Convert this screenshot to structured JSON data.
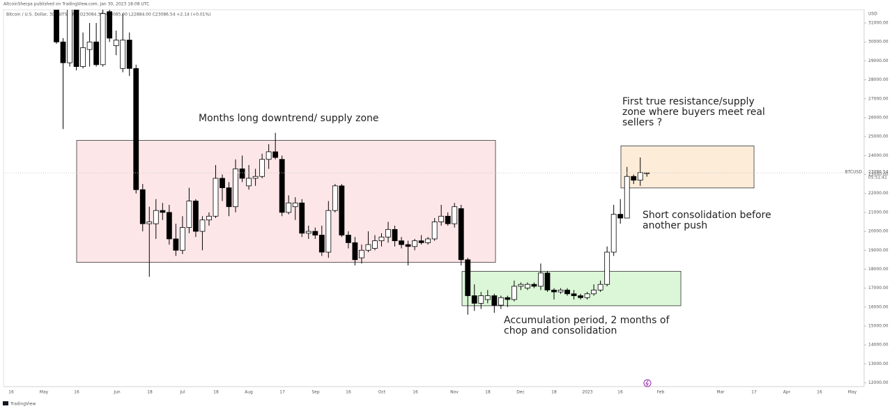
{
  "header": {
    "publisher": "AltcoinSherpa published on TradingView.com, Jan 30, 2023 18:08 UTC",
    "symbol_line": "Bitcoin / U.S. Dollar, 3D, BITSTAMP  O23084.38 H23085.00 L22884.00 C23086.54 +2.14 (+0.01%)"
  },
  "footer": {
    "brand": "TradingView"
  },
  "chart_data": {
    "type": "candlestick",
    "currency": "USD",
    "symbol": "BTCUSD",
    "countdown": "05:51:41",
    "up_color": "#ffffff",
    "down_color": "#000000",
    "ylim": [
      11800,
      31700
    ],
    "yticks": [
      {
        "value": 12000,
        "label": "12000.00"
      },
      {
        "value": 13000,
        "label": "13000.00"
      },
      {
        "value": 14000,
        "label": "14000.00"
      },
      {
        "value": 15000,
        "label": "15000.00"
      },
      {
        "value": 16000,
        "label": "16000.00"
      },
      {
        "value": 17000,
        "label": "17000.00"
      },
      {
        "value": 18000,
        "label": "18000.00"
      },
      {
        "value": 19000,
        "label": "19000.00"
      },
      {
        "value": 20000,
        "label": "20000.00"
      },
      {
        "value": 21000,
        "label": "21000.00"
      },
      {
        "value": 22000,
        "label": "22000.00"
      },
      {
        "value": 23000,
        "label": "23000.00"
      },
      {
        "value": 24000,
        "label": "24000.00"
      },
      {
        "value": 25000,
        "label": "25000.00"
      },
      {
        "value": 26000,
        "label": "26000.00"
      },
      {
        "value": 27000,
        "label": "27000.00"
      },
      {
        "value": 28000,
        "label": "28000.00"
      },
      {
        "value": 29000,
        "label": "29000.00"
      },
      {
        "value": 30000,
        "label": "30000.00"
      },
      {
        "value": 31000,
        "label": "31000.00"
      }
    ],
    "x_axis_labels": [
      "16",
      "May",
      "16",
      "Jun",
      "18",
      "Jul",
      "18",
      "Aug",
      "17",
      "Sep",
      "16",
      "Oct",
      "16",
      "Nov",
      "18",
      "Dec",
      "18",
      "2023",
      "16",
      "Feb",
      "Mar",
      "17",
      "Apr",
      "16",
      "May"
    ],
    "open": [
      31800,
      30000,
      28900,
      31800,
      28700,
      29600,
      30000,
      28800,
      31600,
      29800,
      28600,
      30100,
      28600,
      22200,
      20400,
      20400,
      21100,
      21000,
      19600,
      19000,
      20200,
      21600,
      20000,
      20600,
      20800,
      22800,
      22300,
      21300,
      23300,
      22400,
      22800,
      22900,
      23800,
      24200,
      23800,
      21000,
      21300,
      21500,
      19900,
      20000,
      19800,
      18900,
      21100,
      22400,
      19800,
      19400,
      18600,
      19000,
      19100,
      19500,
      19700,
      20100,
      19500,
      19300,
      19200,
      19500,
      19400,
      19600,
      20500,
      20800,
      20400,
      21200,
      18500,
      16600,
      16200,
      16400,
      16600,
      16100,
      16500,
      16400,
      17100,
      17000,
      17200,
      17100,
      17800,
      16900,
      16800,
      16900,
      16700,
      16600,
      16500,
      16700,
      16900,
      17200,
      18900,
      20900,
      20700,
      22900,
      22700,
      23084.38
    ],
    "high": [
      32200,
      30200,
      32500,
      32200,
      30500,
      31000,
      31000,
      31800,
      32000,
      30600,
      31500,
      30500,
      28800,
      22500,
      21300,
      21700,
      21500,
      21400,
      20400,
      20800,
      22300,
      21700,
      20800,
      21000,
      23500,
      23000,
      22600,
      23800,
      24000,
      23500,
      23300,
      24100,
      24600,
      25200,
      24000,
      21900,
      21800,
      21700,
      20300,
      20200,
      20300,
      21600,
      22500,
      22500,
      20000,
      19700,
      19300,
      20000,
      19800,
      19900,
      20500,
      20300,
      19700,
      19500,
      19600,
      19800,
      19700,
      20700,
      21400,
      21000,
      21500,
      21400,
      18600,
      17200,
      16800,
      16900,
      16700,
      16600,
      16600,
      17400,
      17300,
      17300,
      17300,
      18300,
      17900,
      17000,
      17000,
      17000,
      16900,
      16700,
      16800,
      17200,
      17400,
      19200,
      21400,
      21700,
      23400,
      23000,
      23900,
      23085.0
    ],
    "low": [
      29900,
      25400,
      28700,
      28500,
      28600,
      28700,
      28700,
      28700,
      30000,
      29300,
      28400,
      28200,
      22000,
      20000,
      17600,
      19600,
      20600,
      19300,
      18700,
      18800,
      19900,
      19700,
      19000,
      20300,
      20700,
      21600,
      20800,
      21000,
      22600,
      22200,
      22400,
      22800,
      23300,
      23800,
      20800,
      20900,
      20600,
      19700,
      19600,
      19600,
      18700,
      18600,
      21000,
      19700,
      19100,
      18200,
      18300,
      18900,
      19000,
      19200,
      19400,
      19200,
      19100,
      18200,
      19000,
      19300,
      19300,
      19500,
      20300,
      20300,
      20200,
      18200,
      15600,
      15800,
      15900,
      16200,
      15700,
      15900,
      16000,
      16300,
      16900,
      16900,
      17000,
      16900,
      16800,
      16400,
      16700,
      16600,
      16400,
      16400,
      16400,
      16600,
      16800,
      17100,
      18700,
      20400,
      20700,
      22500,
      22400,
      22884.0
    ],
    "close": [
      30000,
      28900,
      31800,
      28700,
      29700,
      30000,
      28800,
      31500,
      30200,
      30100,
      30100,
      28600,
      22200,
      20400,
      20500,
      21100,
      21000,
      19600,
      19000,
      20200,
      21600,
      20000,
      20600,
      20800,
      22800,
      22300,
      21300,
      23300,
      22800,
      22800,
      22900,
      23800,
      24200,
      23900,
      21000,
      21500,
      21500,
      19900,
      20000,
      19800,
      18900,
      21100,
      22400,
      19800,
      19400,
      18500,
      19000,
      19300,
      19500,
      19700,
      20100,
      19500,
      19300,
      19200,
      19500,
      19400,
      19600,
      20500,
      20800,
      20400,
      21300,
      18500,
      16600,
      16200,
      16600,
      16600,
      16100,
      16500,
      16400,
      17100,
      17200,
      17200,
      17100,
      17800,
      16900,
      16800,
      16900,
      16700,
      16600,
      16500,
      16700,
      16900,
      17200,
      18900,
      20900,
      20700,
      22900,
      22700,
      23100,
      23086.54
    ],
    "zones": [
      {
        "top": 24800,
        "bottom": 18360,
        "color": "#fde6e8"
      },
      {
        "top": 17890,
        "bottom": 16070,
        "color": "#dcf6d8"
      },
      {
        "top": 24510,
        "bottom": 22290,
        "color": "#fdecd8"
      }
    ],
    "annotations": [
      {
        "lines": [
          "Months long downtrend/ supply zone"
        ]
      },
      {
        "lines": [
          "First true resistance/supply",
          "zone where buyers meet real",
          "sellers ?"
        ]
      },
      {
        "lines": [
          "Short consolidation before",
          "another push"
        ]
      },
      {
        "lines": [
          "Accumulation period, 2 months of",
          "chop and consolidation"
        ]
      }
    ]
  }
}
